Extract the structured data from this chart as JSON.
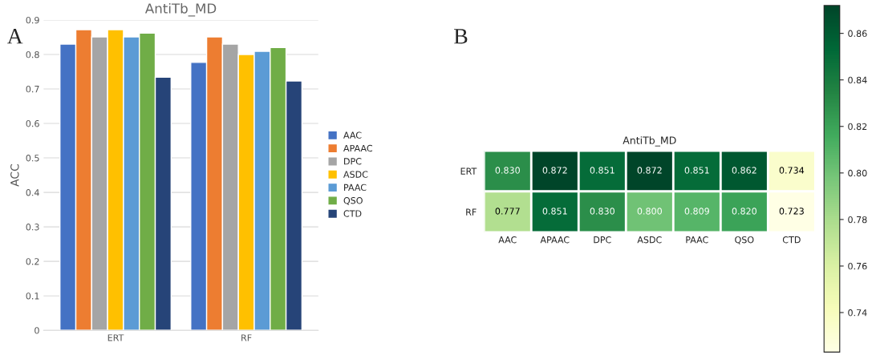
{
  "chart_data": [
    {
      "type": "bar",
      "title": "AntiTb_MD",
      "ylabel": "ACC",
      "categories": [
        "ERT",
        "RF"
      ],
      "series": [
        {
          "name": "AAC",
          "color": "#4472c4",
          "values": [
            0.83,
            0.777
          ]
        },
        {
          "name": "APAAC",
          "color": "#ed7d31",
          "values": [
            0.872,
            0.851
          ]
        },
        {
          "name": "DPC",
          "color": "#a5a5a5",
          "values": [
            0.851,
            0.83
          ]
        },
        {
          "name": "ASDC",
          "color": "#ffc000",
          "values": [
            0.872,
            0.8
          ]
        },
        {
          "name": "PAAC",
          "color": "#5b9bd5",
          "values": [
            0.851,
            0.809
          ]
        },
        {
          "name": "QSO",
          "color": "#70ad47",
          "values": [
            0.862,
            0.82
          ]
        },
        {
          "name": "CTD",
          "color": "#264478",
          "values": [
            0.734,
            0.723
          ]
        }
      ],
      "ylim": [
        0,
        0.9
      ],
      "yticks": [
        0,
        0.1,
        0.2,
        0.3,
        0.4,
        0.5,
        0.6,
        0.7,
        0.8,
        0.9
      ],
      "grid": "y",
      "legend": "right",
      "annotations": [
        "A"
      ]
    },
    {
      "type": "heatmap",
      "title": "AntiTb_MD",
      "categories": [
        "AAC",
        "APAAC",
        "DPC",
        "ASDC",
        "PAAC",
        "QSO",
        "CTD"
      ],
      "y_categories": [
        "ERT",
        "RF"
      ],
      "cells": [
        [
          0.83,
          0.872,
          0.851,
          0.872,
          0.851,
          0.862,
          0.734
        ],
        [
          0.777,
          0.851,
          0.83,
          0.8,
          0.809,
          0.82,
          0.723
        ]
      ],
      "cell_labels": [
        [
          "0.830",
          "0.872",
          "0.851",
          "0.872",
          "0.851",
          "0.862",
          "0.734"
        ],
        [
          "0.777",
          "0.851",
          "0.830",
          "0.800",
          "0.809",
          "0.820",
          "0.723"
        ]
      ],
      "clim": [
        0.723,
        0.872
      ],
      "cticks": [
        0.74,
        0.76,
        0.78,
        {
          "value": 0.8,
          "label": "0.80"
        },
        0.82,
        0.84,
        0.86
      ],
      "annotations": [
        "B"
      ]
    }
  ]
}
